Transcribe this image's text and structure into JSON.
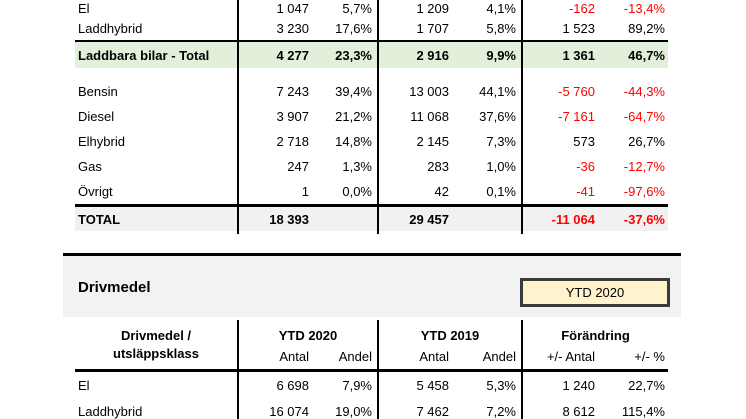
{
  "colors": {
    "negative": "#FF0000",
    "highlight_row_bg": "#E2EFDA",
    "total_row_bg": "#F1F1F1",
    "section_band_bg": "#F2F2F2",
    "period_box_bg": "#FFF2CC",
    "period_box_border": "#3A3A3A"
  },
  "top_table": {
    "rows": [
      {
        "label": "El",
        "c1": "1 047",
        "c2": "5,7%",
        "c3": "1 209",
        "c4": "4,1%",
        "c5": "-162",
        "c6": "-13,4%"
      },
      {
        "label": "Laddhybrid",
        "c1": "3 230",
        "c2": "17,6%",
        "c3": "1 707",
        "c4": "5,8%",
        "c5": "1 523",
        "c6": "89,2%"
      },
      {
        "label": "Laddbara bilar - Total",
        "c1": "4 277",
        "c2": "23,3%",
        "c3": "2 916",
        "c4": "9,9%",
        "c5": "1 361",
        "c6": "46,7%"
      },
      {
        "label": "Bensin",
        "c1": "7 243",
        "c2": "39,4%",
        "c3": "13 003",
        "c4": "44,1%",
        "c5": "-5 760",
        "c6": "-44,3%"
      },
      {
        "label": "Diesel",
        "c1": "3 907",
        "c2": "21,2%",
        "c3": "11 068",
        "c4": "37,6%",
        "c5": "-7 161",
        "c6": "-64,7%"
      },
      {
        "label": "Elhybrid",
        "c1": "2 718",
        "c2": "14,8%",
        "c3": "2 145",
        "c4": "7,3%",
        "c5": "573",
        "c6": "26,7%"
      },
      {
        "label": "Gas",
        "c1": "247",
        "c2": "1,3%",
        "c3": "283",
        "c4": "1,0%",
        "c5": "-36",
        "c6": "-12,7%"
      },
      {
        "label": "Övrigt",
        "c1": "1",
        "c2": "0,0%",
        "c3": "42",
        "c4": "0,1%",
        "c5": "-41",
        "c6": "-97,6%"
      },
      {
        "label": "TOTAL",
        "c1": "18 393",
        "c2": "",
        "c3": "29 457",
        "c4": "",
        "c5": "-11 064",
        "c6": "-37,6%"
      }
    ]
  },
  "section": {
    "title": "Drivmedel",
    "period_label": "YTD 2020"
  },
  "bottom_table": {
    "header": {
      "label_line1": "Drivmedel /",
      "label_line2": "utsläppsklass",
      "group_2020": "YTD 2020",
      "group_2019": "YTD 2019",
      "group_change": "Förändring",
      "antal": "Antal",
      "andel": "Andel",
      "change_antal": "+/- Antal",
      "change_pct": "+/- %"
    },
    "rows": [
      {
        "label": "El",
        "c1": "6 698",
        "c2": "7,9%",
        "c3": "5 458",
        "c4": "5,3%",
        "c5": "1 240",
        "c6": "22,7%"
      },
      {
        "label": "Laddhybrid",
        "c1": "16 074",
        "c2": "19,0%",
        "c3": "7 462",
        "c4": "7,2%",
        "c5": "8 612",
        "c6": "115,4%"
      }
    ]
  }
}
